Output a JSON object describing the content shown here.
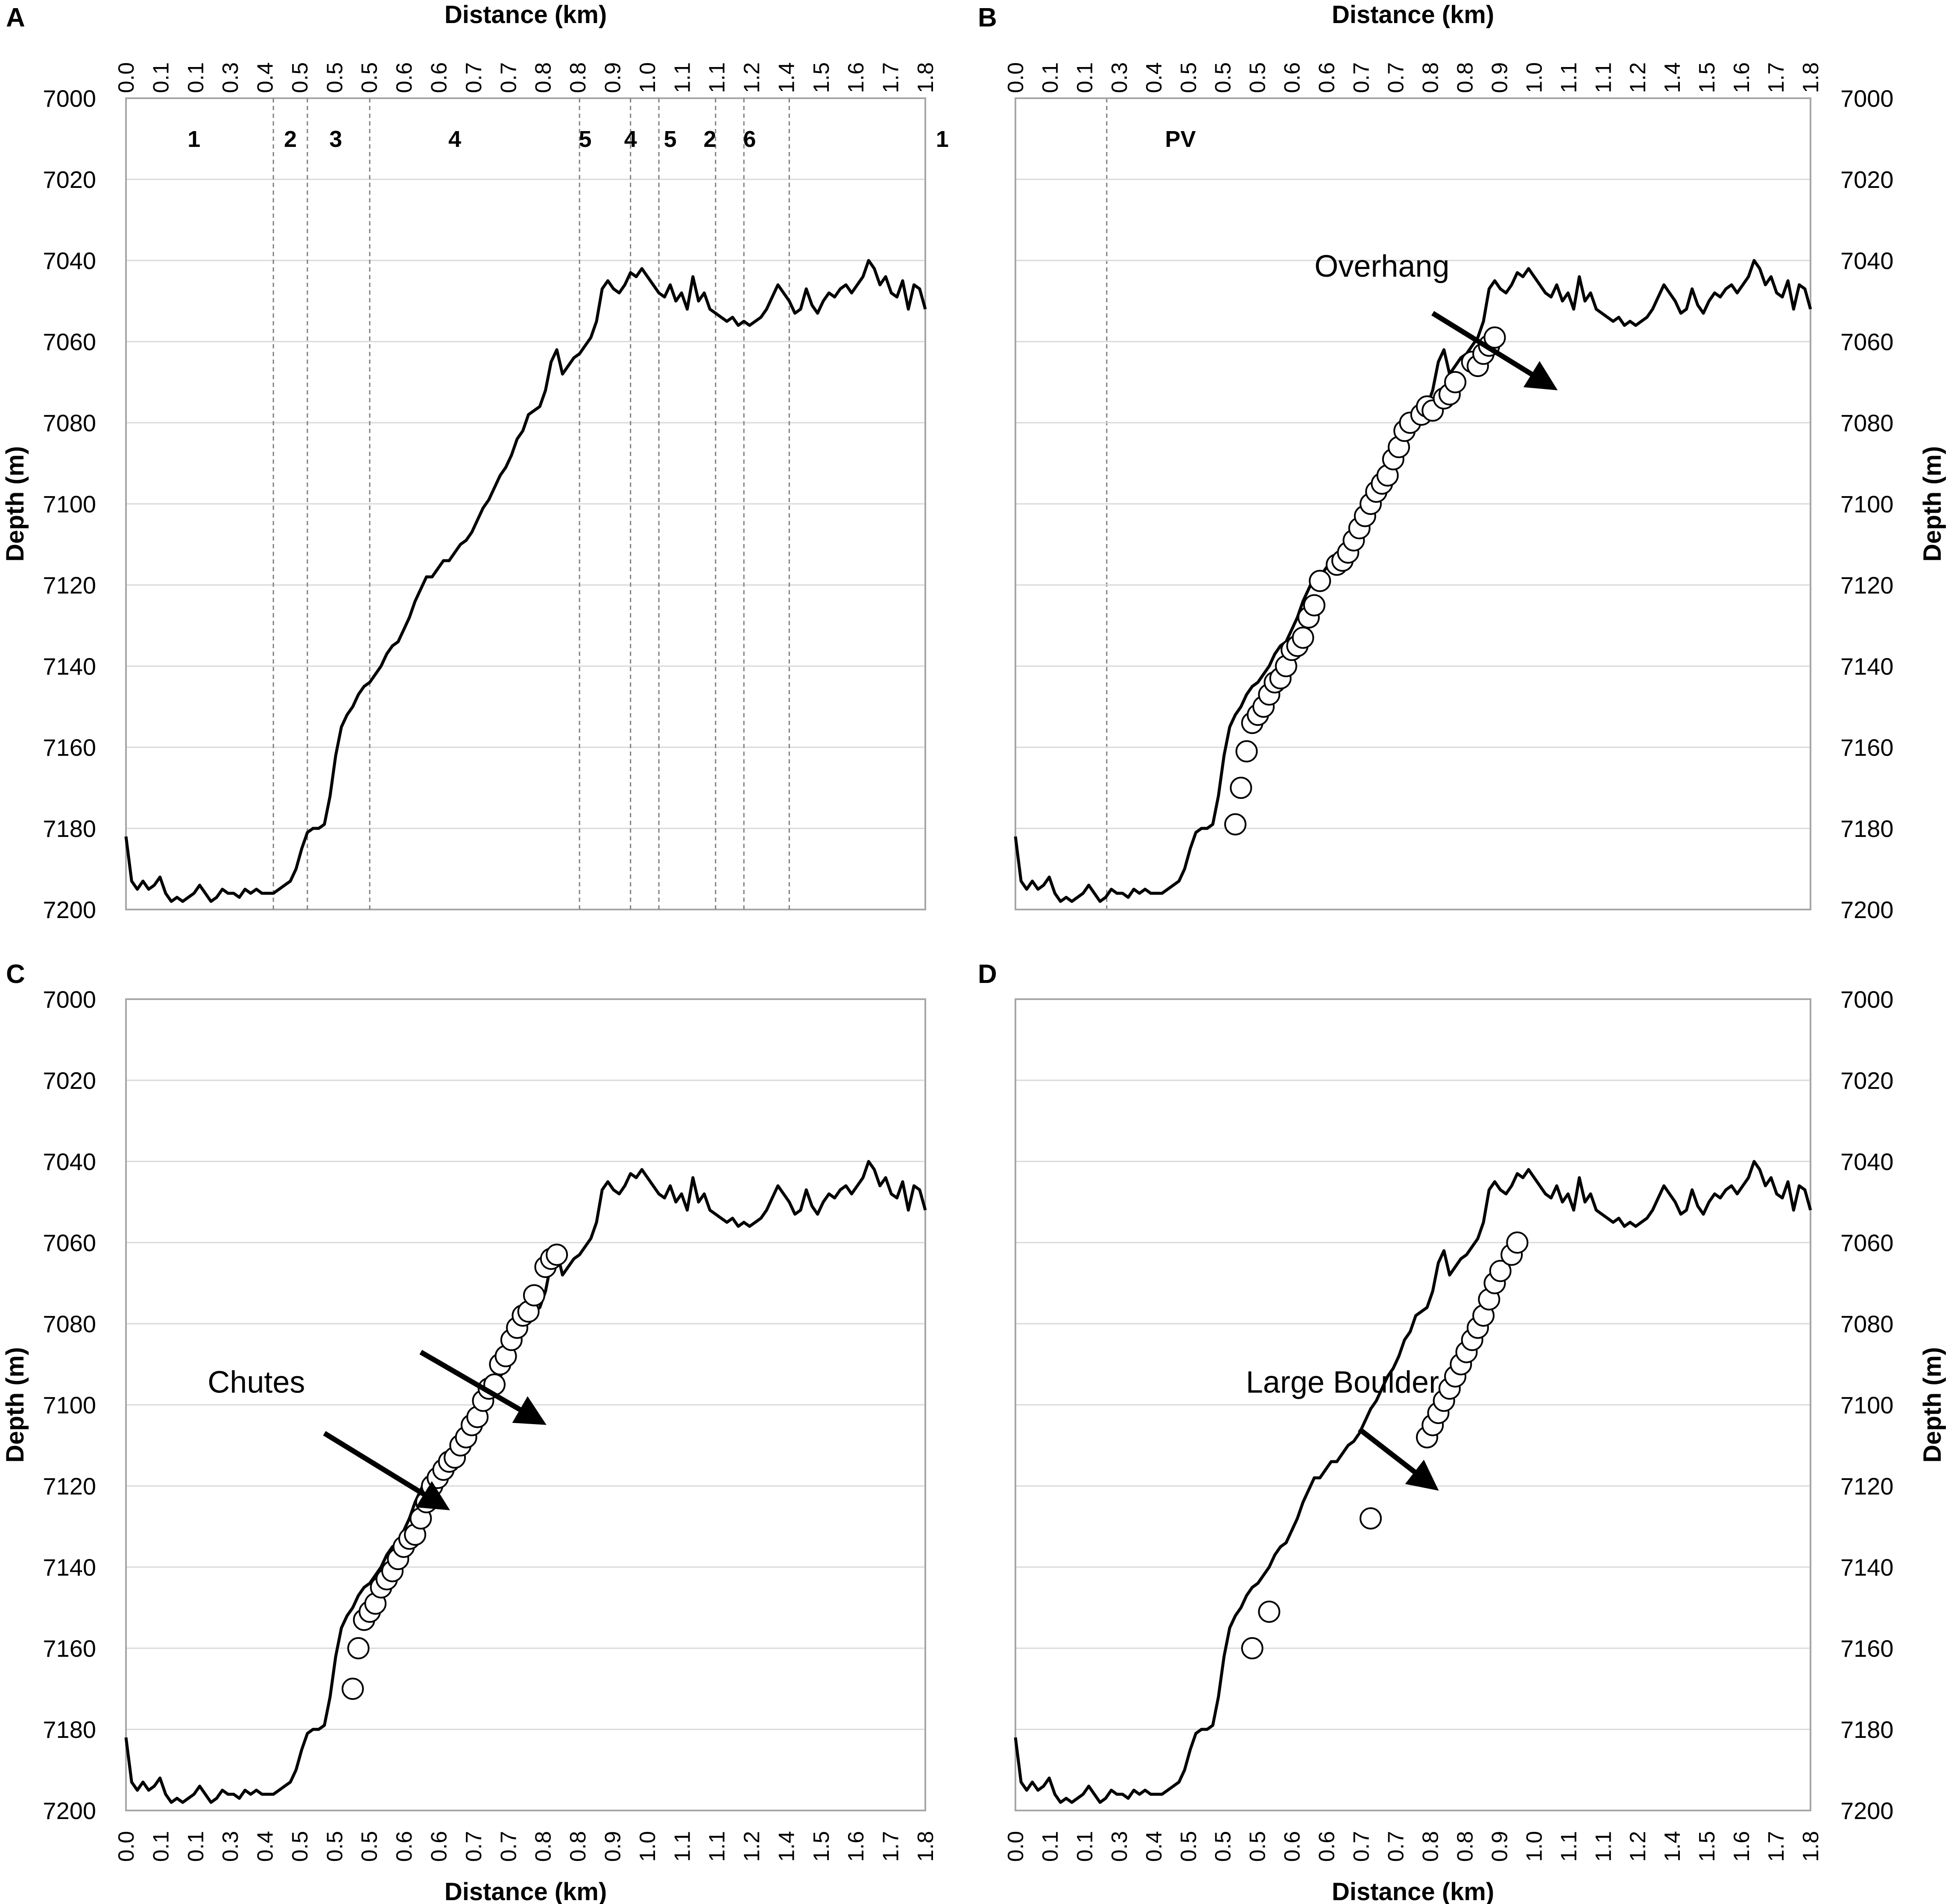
{
  "figure": {
    "panels": [
      {
        "letter": "A",
        "x_axis": {
          "label": "Distance (km)",
          "position": "top"
        },
        "y_axis": {
          "label": "Depth (m)",
          "position": "left"
        },
        "zones": {
          "labels": [
            "1",
            "2",
            "3",
            "4",
            "5",
            "4",
            "5",
            "2",
            "6",
            "1",
            "PV"
          ],
          "label_positions_data": [
            12,
            29,
            37,
            58,
            81,
            89,
            96,
            103,
            110,
            144,
            186
          ],
          "boundaries": [
            26,
            32,
            43,
            80,
            89,
            94,
            104,
            109,
            117,
            173
          ]
        },
        "markers": []
      },
      {
        "letter": "B",
        "x_axis": {
          "label": "Distance (km)",
          "position": "top"
        },
        "y_axis": {
          "label": "Depth (m)",
          "position": "right"
        },
        "annotation": {
          "text": "Overhang",
          "text_x": 65,
          "text_y": 7044,
          "arrow_from": [
            74,
            7053
          ],
          "arrow_to": [
            95,
            7071
          ]
        },
        "markers": [
          [
            39,
            7179
          ],
          [
            40,
            7170
          ],
          [
            41,
            7161
          ],
          [
            42,
            7154
          ],
          [
            43,
            7152
          ],
          [
            44,
            7150
          ],
          [
            45,
            7147
          ],
          [
            46,
            7144
          ],
          [
            47,
            7143
          ],
          [
            48,
            7140
          ],
          [
            49,
            7136
          ],
          [
            50,
            7135
          ],
          [
            51,
            7133
          ],
          [
            52,
            7128
          ],
          [
            53,
            7125
          ],
          [
            54,
            7119
          ],
          [
            57,
            7115
          ],
          [
            58,
            7114
          ],
          [
            59,
            7112
          ],
          [
            60,
            7109
          ],
          [
            61,
            7106
          ],
          [
            62,
            7103
          ],
          [
            63,
            7100
          ],
          [
            64,
            7097
          ],
          [
            65,
            7095
          ],
          [
            66,
            7093
          ],
          [
            67,
            7089
          ],
          [
            68,
            7086
          ],
          [
            69,
            7082
          ],
          [
            70,
            7080
          ],
          [
            72,
            7078
          ],
          [
            73,
            7076
          ],
          [
            74,
            7077
          ],
          [
            76,
            7074
          ],
          [
            77,
            7073
          ],
          [
            78,
            7070
          ],
          [
            81,
            7065
          ],
          [
            82,
            7066
          ],
          [
            83,
            7063
          ],
          [
            84,
            7061
          ],
          [
            85,
            7059
          ]
        ]
      },
      {
        "letter": "C",
        "x_axis": {
          "label": "Distance (km)",
          "position": "bottom"
        },
        "y_axis": {
          "label": "Depth (m)",
          "position": "left"
        },
        "annotation": {
          "text": "Chutes",
          "arrows": [
            {
              "text_x": 23,
              "text_y": 7097
            },
            {
              "from": [
                52,
                7087
              ],
              "to": [
                73,
                7104
              ]
            },
            {
              "from": [
                35,
                7107
              ],
              "to": [
                56,
                7125
              ]
            }
          ]
        },
        "markers": [
          [
            40,
            7170
          ],
          [
            41,
            7160
          ],
          [
            42,
            7153
          ],
          [
            43,
            7151
          ],
          [
            44,
            7149
          ],
          [
            45,
            7145
          ],
          [
            46,
            7143
          ],
          [
            47,
            7141
          ],
          [
            48,
            7138
          ],
          [
            49,
            7135
          ],
          [
            50,
            7133
          ],
          [
            51,
            7132
          ],
          [
            52,
            7128
          ],
          [
            53,
            7124
          ],
          [
            54,
            7120
          ],
          [
            55,
            7118
          ],
          [
            56,
            7116
          ],
          [
            57,
            7114
          ],
          [
            58,
            7113
          ],
          [
            59,
            7110
          ],
          [
            60,
            7108
          ],
          [
            61,
            7105
          ],
          [
            62,
            7103
          ],
          [
            63,
            7099
          ],
          [
            64,
            7096
          ],
          [
            65,
            7095
          ],
          [
            66,
            7090
          ],
          [
            67,
            7088
          ],
          [
            68,
            7084
          ],
          [
            69,
            7081
          ],
          [
            70,
            7078
          ],
          [
            71,
            7077
          ],
          [
            72,
            7073
          ],
          [
            74,
            7066
          ],
          [
            75,
            7064
          ],
          [
            76,
            7063
          ]
        ]
      },
      {
        "letter": "D",
        "x_axis": {
          "label": "Distance (km)",
          "position": "bottom"
        },
        "y_axis": {
          "label": "Depth (m)",
          "position": "right"
        },
        "annotation": {
          "text": "Large Boulder",
          "text_x": 58,
          "text_y": 7097,
          "arrow_from": [
            61,
            7106
          ],
          "arrow_to": [
            74,
            7120
          ]
        },
        "markers": [
          [
            42,
            7160
          ],
          [
            45,
            7151
          ],
          [
            63,
            7128
          ],
          [
            73,
            7108
          ],
          [
            74,
            7105
          ],
          [
            75,
            7102
          ],
          [
            76,
            7099
          ],
          [
            77,
            7096
          ],
          [
            78,
            7093
          ],
          [
            79,
            7090
          ],
          [
            80,
            7087
          ],
          [
            81,
            7084
          ],
          [
            82,
            7081
          ],
          [
            83,
            7078
          ],
          [
            84,
            7074
          ],
          [
            85,
            7070
          ],
          [
            86,
            7067
          ],
          [
            88,
            7063
          ],
          [
            89,
            7060
          ]
        ]
      }
    ]
  },
  "chart_data": {
    "type": "line",
    "x_tick_labels": [
      "0.0",
      "0.1",
      "0.1",
      "0.3",
      "0.4",
      "0.5",
      "0.5",
      "0.5",
      "0.6",
      "0.6",
      "0.7",
      "0.7",
      "0.8",
      "0.8",
      "0.9",
      "1.0",
      "1.1",
      "1.1",
      "1.2",
      "1.4",
      "1.5",
      "1.6",
      "1.7",
      "1.8"
    ],
    "y_ticks": [
      7000,
      7020,
      7040,
      7060,
      7080,
      7100,
      7120,
      7140,
      7160,
      7180,
      7200
    ],
    "ylim": [
      7000,
      7200
    ],
    "y_inverted": true,
    "grid": "horizontal",
    "profile": [
      [
        0,
        7182
      ],
      [
        1,
        7193
      ],
      [
        2,
        7195
      ],
      [
        3,
        7193
      ],
      [
        4,
        7195
      ],
      [
        5,
        7194
      ],
      [
        6,
        7192
      ],
      [
        7,
        7196
      ],
      [
        8,
        7198
      ],
      [
        9,
        7197
      ],
      [
        10,
        7198
      ],
      [
        11,
        7197
      ],
      [
        12,
        7196
      ],
      [
        13,
        7194
      ],
      [
        14,
        7196
      ],
      [
        15,
        7198
      ],
      [
        16,
        7197
      ],
      [
        17,
        7195
      ],
      [
        18,
        7196
      ],
      [
        19,
        7196
      ],
      [
        20,
        7197
      ],
      [
        21,
        7195
      ],
      [
        22,
        7196
      ],
      [
        23,
        7195
      ],
      [
        24,
        7196
      ],
      [
        25,
        7196
      ],
      [
        26,
        7196
      ],
      [
        27,
        7195
      ],
      [
        28,
        7194
      ],
      [
        29,
        7193
      ],
      [
        30,
        7190
      ],
      [
        31,
        7185
      ],
      [
        32,
        7181
      ],
      [
        33,
        7180
      ],
      [
        34,
        7180
      ],
      [
        35,
        7179
      ],
      [
        36,
        7172
      ],
      [
        37,
        7162
      ],
      [
        38,
        7155
      ],
      [
        39,
        7152
      ],
      [
        40,
        7150
      ],
      [
        41,
        7147
      ],
      [
        42,
        7145
      ],
      [
        43,
        7144
      ],
      [
        44,
        7142
      ],
      [
        45,
        7140
      ],
      [
        46,
        7137
      ],
      [
        47,
        7135
      ],
      [
        48,
        7134
      ],
      [
        49,
        7131
      ],
      [
        50,
        7128
      ],
      [
        51,
        7124
      ],
      [
        52,
        7121
      ],
      [
        53,
        7118
      ],
      [
        54,
        7118
      ],
      [
        55,
        7116
      ],
      [
        56,
        7114
      ],
      [
        57,
        7114
      ],
      [
        58,
        7112
      ],
      [
        59,
        7110
      ],
      [
        60,
        7109
      ],
      [
        61,
        7107
      ],
      [
        62,
        7104
      ],
      [
        63,
        7101
      ],
      [
        64,
        7099
      ],
      [
        65,
        7096
      ],
      [
        66,
        7093
      ],
      [
        67,
        7091
      ],
      [
        68,
        7088
      ],
      [
        69,
        7084
      ],
      [
        70,
        7082
      ],
      [
        71,
        7078
      ],
      [
        72,
        7077
      ],
      [
        73,
        7076
      ],
      [
        74,
        7072
      ],
      [
        75,
        7065
      ],
      [
        76,
        7062
      ],
      [
        77,
        7068
      ],
      [
        78,
        7066
      ],
      [
        79,
        7064
      ],
      [
        80,
        7063
      ],
      [
        81,
        7061
      ],
      [
        82,
        7059
      ],
      [
        83,
        7055
      ],
      [
        84,
        7047
      ],
      [
        85,
        7045
      ],
      [
        86,
        7047
      ],
      [
        87,
        7048
      ],
      [
        88,
        7046
      ],
      [
        89,
        7043
      ],
      [
        90,
        7044
      ],
      [
        91,
        7042
      ],
      [
        92,
        7044
      ],
      [
        93,
        7046
      ],
      [
        94,
        7048
      ],
      [
        95,
        7049
      ],
      [
        96,
        7046
      ],
      [
        97,
        7050
      ],
      [
        98,
        7048
      ],
      [
        99,
        7052
      ],
      [
        100,
        7044
      ],
      [
        101,
        7050
      ],
      [
        102,
        7048
      ],
      [
        103,
        7052
      ],
      [
        104,
        7053
      ],
      [
        105,
        7054
      ],
      [
        106,
        7055
      ],
      [
        107,
        7054
      ],
      [
        108,
        7056
      ],
      [
        109,
        7055
      ],
      [
        110,
        7056
      ],
      [
        111,
        7055
      ],
      [
        112,
        7054
      ],
      [
        113,
        7052
      ],
      [
        114,
        7049
      ],
      [
        115,
        7046
      ],
      [
        116,
        7048
      ],
      [
        117,
        7050
      ],
      [
        118,
        7053
      ],
      [
        119,
        7052
      ],
      [
        120,
        7047
      ],
      [
        121,
        7051
      ],
      [
        122,
        7053
      ],
      [
        123,
        7050
      ],
      [
        124,
        7048
      ],
      [
        125,
        7049
      ],
      [
        126,
        7047
      ],
      [
        127,
        7046
      ],
      [
        128,
        7048
      ],
      [
        129,
        7046
      ],
      [
        130,
        7044
      ],
      [
        131,
        7040
      ],
      [
        132,
        7042
      ],
      [
        133,
        7046
      ],
      [
        134,
        7044
      ],
      [
        135,
        7048
      ],
      [
        136,
        7049
      ],
      [
        137,
        7045
      ],
      [
        138,
        7052
      ],
      [
        139,
        7046
      ],
      [
        140,
        7047
      ],
      [
        141,
        7052
      ]
    ]
  }
}
